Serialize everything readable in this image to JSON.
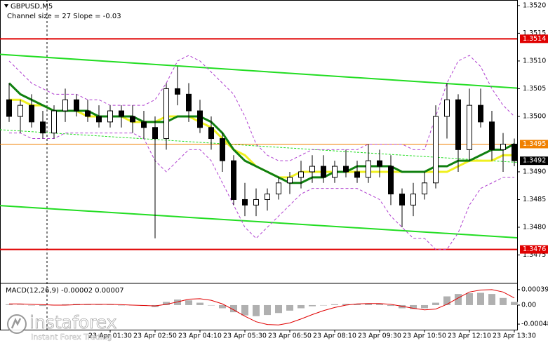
{
  "chart_data": {
    "type": "candlestick",
    "title": "GBPUSD,M5",
    "subtitle": "Channel size = 27 Slope = -0.03",
    "ylim": [
      1.347,
      1.3521
    ],
    "yticks": [
      {
        "value": 1.352,
        "label": "1.3520"
      },
      1.3515,
      {
        "value": 1.351,
        "label": "1.3510"
      },
      1.3505,
      {
        "value": 1.35,
        "label": "1.3500"
      },
      {
        "value": 1.349,
        "label": "1.3490"
      },
      1.3485,
      {
        "value": 1.348,
        "label": "1.3480"
      },
      1.3475
    ],
    "levels": [
      {
        "value": 1.3514,
        "color": "#e00000",
        "line": true
      },
      {
        "value": 1.3476,
        "color": "#e00000",
        "line": true
      },
      {
        "value": 1.3495,
        "color": "#f08000",
        "line": true
      },
      {
        "value": 1.3492,
        "color": "#000000",
        "line": false
      }
    ],
    "channel": [
      {
        "start": 1.35112,
        "end": 1.35051,
        "color": "#22dd22",
        "dashed": false
      },
      {
        "start": 1.34976,
        "end": 1.34917,
        "color": "#22dd22",
        "dashed": true
      },
      {
        "start": 1.34839,
        "end": 1.34781,
        "color": "#22dd22",
        "dashed": false
      }
    ],
    "xticks": [
      {
        "value": 9,
        "label": "23 Apr 01:30"
      },
      {
        "value": 13,
        "label": "23 Apr 02:50"
      },
      {
        "value": 17,
        "label": "23 Apr 04:10"
      },
      {
        "value": 21,
        "label": "23 Apr 05:30"
      },
      {
        "value": 25,
        "label": "23 Apr 06:50"
      },
      {
        "value": 29,
        "label": "23 Apr 08:10"
      },
      {
        "value": 33,
        "label": "23 Apr 09:30"
      },
      {
        "value": 37,
        "label": "23 Apr 10:50"
      },
      {
        "value": 41,
        "label": "23 Apr 12:10"
      },
      {
        "value": 45,
        "label": "23 Apr 13:30"
      }
    ],
    "open": [
      1.3503,
      1.35,
      1.3502,
      1.3499,
      1.3497,
      1.3501,
      1.3503,
      1.3501,
      1.35,
      1.3499,
      1.3501,
      1.35,
      1.3499,
      1.3498,
      1.3496,
      1.3505,
      1.3504,
      1.3501,
      1.3498,
      1.3496,
      1.3492,
      1.3485,
      1.3484,
      1.3485,
      1.3486,
      1.3488,
      1.3489,
      1.349,
      1.3491,
      1.3489,
      1.3491,
      1.349,
      1.3489,
      1.3492,
      1.3491,
      1.3486,
      1.3484,
      1.3486,
      1.3488,
      1.35,
      1.3503,
      1.3494,
      1.3502,
      1.3499,
      1.3494,
      1.3495
    ],
    "high": [
      1.3506,
      1.3503,
      1.3504,
      1.3501,
      1.3502,
      1.3505,
      1.3504,
      1.3503,
      1.3502,
      1.3502,
      1.3502,
      1.3502,
      1.3501,
      1.35,
      1.3506,
      1.3509,
      1.3506,
      1.3503,
      1.35,
      1.3497,
      1.3493,
      1.3488,
      1.3487,
      1.3487,
      1.3489,
      1.349,
      1.3492,
      1.3493,
      1.3493,
      1.3492,
      1.3494,
      1.3492,
      1.3495,
      1.3494,
      1.3493,
      1.3487,
      1.3488,
      1.349,
      1.3502,
      1.3506,
      1.3504,
      1.3505,
      1.3505,
      1.3501,
      1.3497,
      1.3496
    ],
    "low": [
      1.3499,
      1.3497,
      1.3498,
      1.3496,
      1.3496,
      1.3499,
      1.35,
      1.3499,
      1.3498,
      1.3498,
      1.3498,
      1.3497,
      1.3496,
      1.3478,
      1.3494,
      1.3502,
      1.3499,
      1.3497,
      1.3494,
      1.349,
      1.3484,
      1.3482,
      1.3482,
      1.3483,
      1.3485,
      1.3486,
      1.3487,
      1.3488,
      1.3488,
      1.3488,
      1.3489,
      1.3488,
      1.3488,
      1.3489,
      1.3484,
      1.348,
      1.3482,
      1.3485,
      1.3487,
      1.3496,
      1.349,
      1.3492,
      1.3498,
      1.3492,
      1.349,
      1.3491
    ],
    "close": [
      1.35,
      1.3502,
      1.3499,
      1.3497,
      1.3501,
      1.3503,
      1.3501,
      1.35,
      1.3499,
      1.3501,
      1.35,
      1.3499,
      1.3498,
      1.3496,
      1.3505,
      1.3504,
      1.3501,
      1.3498,
      1.3496,
      1.3492,
      1.3485,
      1.3484,
      1.3485,
      1.3486,
      1.3488,
      1.3489,
      1.349,
      1.3491,
      1.3489,
      1.3491,
      1.349,
      1.3489,
      1.3492,
      1.3491,
      1.3486,
      1.3484,
      1.3486,
      1.3488,
      1.35,
      1.3503,
      1.3494,
      1.3502,
      1.3499,
      1.3494,
      1.3495,
      1.3492
    ],
    "series": [
      {
        "color": "#f0f020",
        "width": 3,
        "dashed": false,
        "values": [
          1.3503,
          1.3503,
          1.3502,
          1.3502,
          1.3501,
          1.3501,
          1.3501,
          1.35,
          1.35,
          1.35,
          1.35,
          1.3499,
          1.3499,
          1.3499,
          1.35,
          1.35,
          1.35,
          1.3499,
          1.3498,
          1.3496,
          1.3494,
          1.3493,
          1.3491,
          1.349,
          1.3489,
          1.3489,
          1.349,
          1.349,
          1.349,
          1.349,
          1.349,
          1.349,
          1.349,
          1.349,
          1.349,
          1.349,
          1.349,
          1.349,
          1.349,
          1.349,
          1.3491,
          1.3492,
          1.3492,
          1.3492,
          1.3493,
          1.3493
        ]
      },
      {
        "color": "#108010",
        "width": 3,
        "dashed": false,
        "values": [
          1.3506,
          1.3504,
          1.3503,
          1.3502,
          1.3501,
          1.3501,
          1.3501,
          1.3501,
          1.35,
          1.35,
          1.35,
          1.35,
          1.3499,
          1.3499,
          1.3499,
          1.35,
          1.35,
          1.35,
          1.3499,
          1.3497,
          1.3494,
          1.3492,
          1.3491,
          1.349,
          1.3489,
          1.3488,
          1.3488,
          1.3489,
          1.3489,
          1.349,
          1.349,
          1.3491,
          1.3491,
          1.3491,
          1.3491,
          1.349,
          1.349,
          1.349,
          1.3491,
          1.3491,
          1.3492,
          1.3492,
          1.3493,
          1.3494,
          1.3494,
          1.3495
        ]
      },
      {
        "color": "#b040d0",
        "width": 1,
        "dashed": true,
        "values": [
          1.351,
          1.3508,
          1.3506,
          1.3505,
          1.3504,
          1.3504,
          1.3504,
          1.3503,
          1.3503,
          1.3502,
          1.3502,
          1.3502,
          1.3502,
          1.3503,
          1.3506,
          1.351,
          1.3511,
          1.351,
          1.3508,
          1.3506,
          1.3504,
          1.35,
          1.3495,
          1.3493,
          1.3492,
          1.3492,
          1.3493,
          1.3494,
          1.3494,
          1.3494,
          1.3494,
          1.3494,
          1.3495,
          1.3495,
          1.3495,
          1.3495,
          1.3494,
          1.3494,
          1.35,
          1.3506,
          1.351,
          1.3511,
          1.3509,
          1.3505,
          1.3502,
          1.35
        ]
      },
      {
        "color": "#b040d0",
        "width": 1,
        "dashed": true,
        "values": [
          1.3497,
          1.3497,
          1.3496,
          1.3496,
          1.3496,
          1.3497,
          1.3497,
          1.3497,
          1.3497,
          1.3497,
          1.3497,
          1.3497,
          1.3496,
          1.3492,
          1.349,
          1.3492,
          1.3494,
          1.3494,
          1.3492,
          1.3488,
          1.3484,
          1.348,
          1.3478,
          1.348,
          1.3482,
          1.3484,
          1.3486,
          1.3487,
          1.3487,
          1.3487,
          1.3487,
          1.3487,
          1.3486,
          1.3485,
          1.3482,
          1.348,
          1.3478,
          1.3478,
          1.3476,
          1.3476,
          1.3479,
          1.3484,
          1.3487,
          1.3488,
          1.3489,
          1.3489
        ]
      }
    ],
    "macd": {
      "title": "MACD(12,26,9) -0.00002 0.00007",
      "ylim": [
        -0.00062,
        0.00053
      ],
      "yticks": [
        0.00039,
        {
          "value": 0,
          "label": "0.00"
        },
        -0.00048
      ],
      "histogram_color": "#b0b0b0",
      "signal_color": "#e00000",
      "histogram": [
        2e-05,
        1e-05,
        0,
        -2e-05,
        0,
        2e-05,
        3e-05,
        2e-05,
        1e-05,
        1e-05,
        0,
        0,
        -2e-05,
        -5e-05,
        8e-05,
        0.00014,
        0.00012,
        6e-05,
        0,
        -8e-05,
        -0.00018,
        -0.00026,
        -0.00028,
        -0.00025,
        -0.0002,
        -0.00014,
        -8e-05,
        -3e-05,
        0,
        2e-05,
        3e-05,
        3e-05,
        4e-05,
        3e-05,
        -2e-05,
        -8e-05,
        -0.0001,
        -8e-05,
        6e-05,
        0.00022,
        0.00028,
        0.0003,
        0.00031,
        0.00028,
        0.00018,
        8e-05
      ],
      "signal": [
        3e-05,
        3e-05,
        2e-05,
        1e-05,
        0,
        0,
        1e-05,
        2e-05,
        2e-05,
        2e-05,
        1e-05,
        0,
        -1e-05,
        -2e-05,
        2e-05,
        8e-05,
        0.00015,
        0.00016,
        0.00012,
        3e-05,
        -0.00012,
        -0.00028,
        -0.00042,
        -0.00049,
        -0.0005,
        -0.00045,
        -0.00035,
        -0.00024,
        -0.00014,
        -6e-05,
        0,
        3e-05,
        4e-05,
        4e-05,
        2e-05,
        -3e-05,
        -8e-05,
        -0.00012,
        -0.0001,
        2e-05,
        0.00018,
        0.00033,
        0.00038,
        0.00039,
        0.00033,
        0.00018
      ]
    },
    "branding": {
      "name": "instaforex",
      "tagline": "Instant Forex Trading"
    }
  }
}
